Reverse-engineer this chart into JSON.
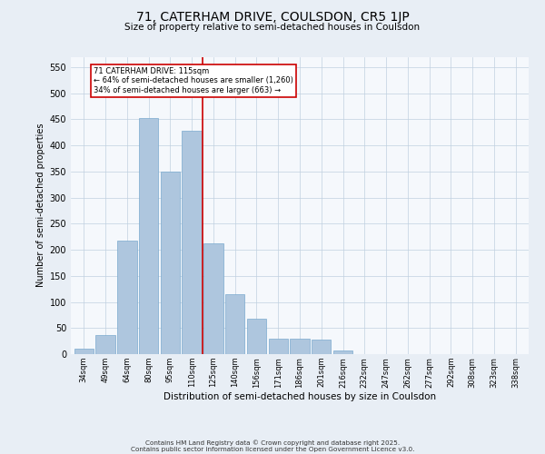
{
  "title": "71, CATERHAM DRIVE, COULSDON, CR5 1JP",
  "subtitle": "Size of property relative to semi-detached houses in Coulsdon",
  "xlabel": "Distribution of semi-detached houses by size in Coulsdon",
  "ylabel": "Number of semi-detached properties",
  "categories": [
    "34sqm",
    "49sqm",
    "64sqm",
    "80sqm",
    "95sqm",
    "110sqm",
    "125sqm",
    "140sqm",
    "156sqm",
    "171sqm",
    "186sqm",
    "201sqm",
    "216sqm",
    "232sqm",
    "247sqm",
    "262sqm",
    "277sqm",
    "292sqm",
    "308sqm",
    "323sqm",
    "338sqm"
  ],
  "values": [
    10,
    37,
    218,
    453,
    350,
    428,
    213,
    115,
    68,
    30,
    30,
    27,
    7,
    0,
    0,
    0,
    0,
    0,
    0,
    0,
    0
  ],
  "bar_color": "#aec6de",
  "bar_edge_color": "#7aaace",
  "annotation_marker_label": "71 CATERHAM DRIVE: 115sqm",
  "annotation_line1": "← 64% of semi-detached houses are smaller (1,260)",
  "annotation_line2": "34% of semi-detached houses are larger (663) →",
  "vline_color": "#cc0000",
  "box_edge_color": "#cc0000",
  "ylim_max": 570,
  "yticks": [
    0,
    50,
    100,
    150,
    200,
    250,
    300,
    350,
    400,
    450,
    500,
    550
  ],
  "footer_line1": "Contains HM Land Registry data © Crown copyright and database right 2025.",
  "footer_line2": "Contains public sector information licensed under the Open Government Licence v3.0.",
  "bg_color": "#e8eef5",
  "plot_bg_color": "#f5f8fc",
  "vline_position": 5.5
}
